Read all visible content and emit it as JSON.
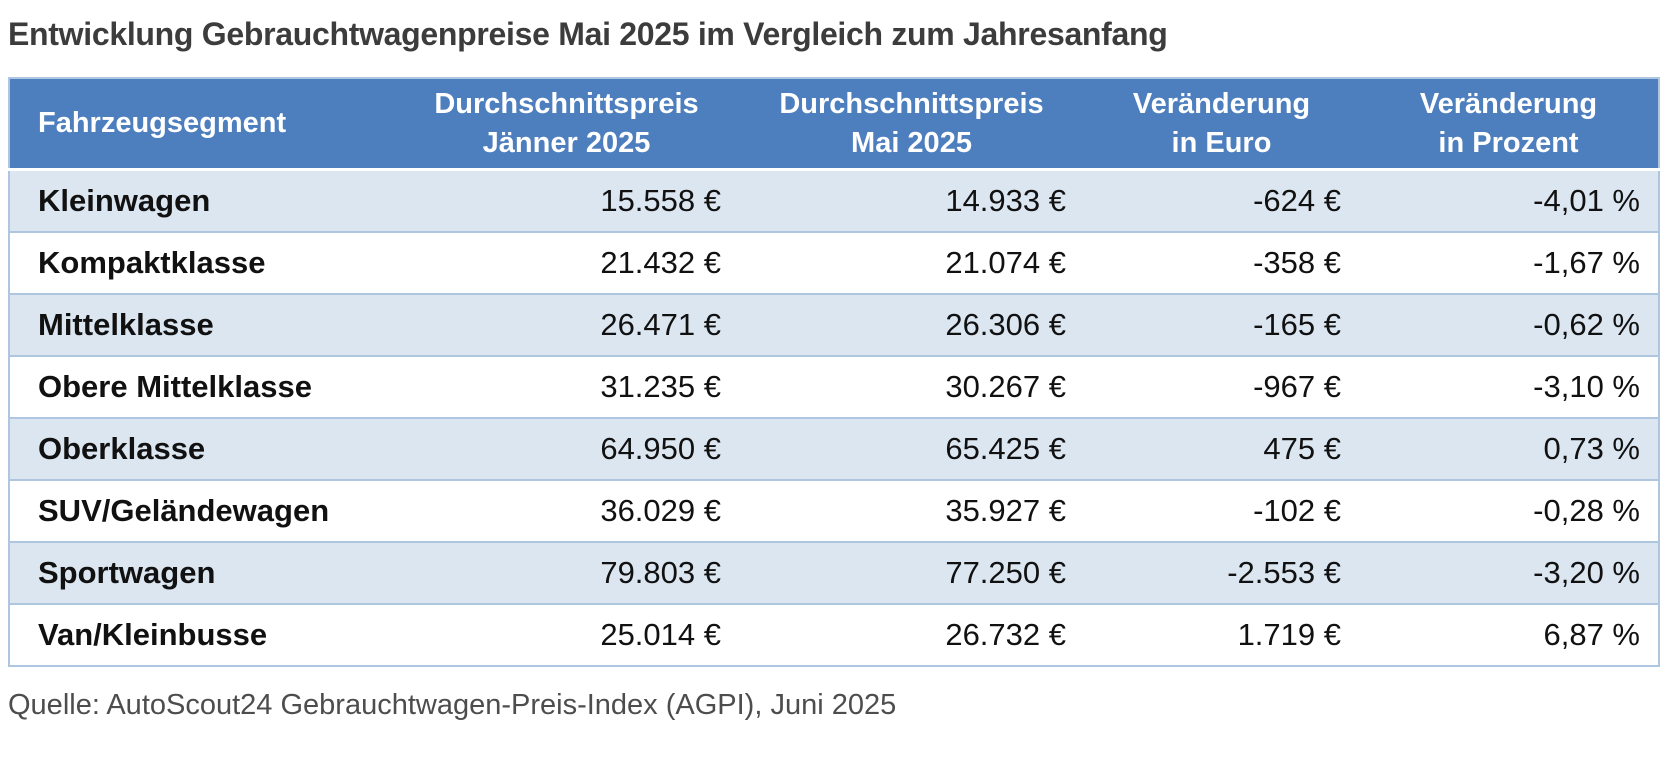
{
  "page": {
    "title": "Entwicklung Gebrauchtwagenpreise Mai 2025 im Vergleich zum Jahresanfang",
    "source": "Quelle: AutoScout24 Gebrauchtwagen-Preis-Index (AGPI), Juni 2025"
  },
  "colors": {
    "header_bg": "#4d7ebe",
    "header_text": "#ffffff",
    "row_alt_bg": "#dce6f1",
    "row_plain_bg": "#ffffff",
    "border": "#aec6e0",
    "title_text": "#3c3c3c",
    "source_text": "#4d4d4d"
  },
  "table": {
    "headers": [
      {
        "line1": "Fahrzeugsegment",
        "line2": ""
      },
      {
        "line1": "Durchschnittspreis",
        "line2": "Jänner 2025"
      },
      {
        "line1": "Durchschnittspreis",
        "line2": "Mai 2025"
      },
      {
        "line1": "Veränderung",
        "line2": "in Euro"
      },
      {
        "line1": "Veränderung",
        "line2": "in Prozent"
      }
    ],
    "rows": [
      {
        "segment": "Kleinwagen",
        "jan": "15.558 €",
        "may": "14.933 €",
        "eur": "-624 €",
        "pct": "-4,01 %"
      },
      {
        "segment": "Kompaktklasse",
        "jan": "21.432 €",
        "may": "21.074 €",
        "eur": "-358 €",
        "pct": "-1,67 %"
      },
      {
        "segment": "Mittelklasse",
        "jan": "26.471 €",
        "may": "26.306 €",
        "eur": "-165 €",
        "pct": "-0,62 %"
      },
      {
        "segment": "Obere Mittelklasse",
        "jan": "31.235 €",
        "may": "30.267 €",
        "eur": "-967 €",
        "pct": "-3,10 %"
      },
      {
        "segment": "Oberklasse",
        "jan": "64.950 €",
        "may": "65.425 €",
        "eur": "475 €",
        "pct": "0,73 %"
      },
      {
        "segment": "SUV/Geländewagen",
        "jan": "36.029 €",
        "may": "35.927 €",
        "eur": "-102 €",
        "pct": "-0,28 %"
      },
      {
        "segment": "Sportwagen",
        "jan": "79.803 €",
        "may": "77.250 €",
        "eur": "-2.553 €",
        "pct": "-3,20 %"
      },
      {
        "segment": "Van/Kleinbusse",
        "jan": "25.014 €",
        "may": "26.732 €",
        "eur": "1.719 €",
        "pct": "6,87 %"
      }
    ]
  },
  "chart_data": {
    "type": "table",
    "title": "Entwicklung Gebrauchtwagenpreise Mai 2025 im Vergleich zum Jahresanfang",
    "columns": [
      "Fahrzeugsegment",
      "Durchschnittspreis Jänner 2025",
      "Durchschnittspreis Mai 2025",
      "Veränderung in Euro",
      "Veränderung in Prozent"
    ],
    "rows": [
      [
        "Kleinwagen",
        15558,
        14933,
        -624,
        -4.01
      ],
      [
        "Kompaktklasse",
        21432,
        21074,
        -358,
        -1.67
      ],
      [
        "Mittelklasse",
        26471,
        26306,
        -165,
        -0.62
      ],
      [
        "Obere Mittelklasse",
        31235,
        30267,
        -967,
        -3.1
      ],
      [
        "Oberklasse",
        64950,
        65425,
        475,
        0.73
      ],
      [
        "SUV/Geländewagen",
        36029,
        35927,
        -102,
        -0.28
      ],
      [
        "Sportwagen",
        79803,
        77250,
        -2553,
        -3.2
      ],
      [
        "Van/Kleinbusse",
        25014,
        26732,
        1719,
        6.87
      ]
    ],
    "units": {
      "prices": "EUR",
      "change_abs": "EUR",
      "change_rel": "%"
    },
    "source": "Quelle: AutoScout24 Gebrauchtwagen-Preis-Index (AGPI), Juni 2025"
  }
}
